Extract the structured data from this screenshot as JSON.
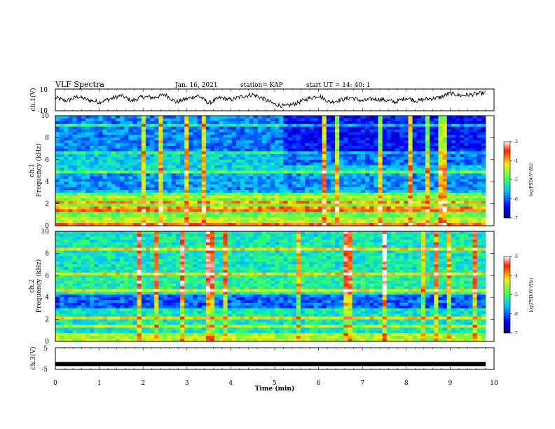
{
  "header": {
    "title": "VLF Spectra",
    "date": "Jan. 16, 2021",
    "station": "station= KAP",
    "start": "start UT =  14: 40: 1"
  },
  "chart_data": [
    {
      "type": "line",
      "panel": "ch1-waveform",
      "ylabel": "ch.1(V)",
      "ylim": [
        -10,
        10
      ],
      "yticks": [
        -10,
        10
      ],
      "xlim": [
        0,
        10
      ],
      "note_values": "approximate waveform samples every 0.25 min",
      "x": [
        0,
        0.25,
        0.5,
        0.75,
        1,
        1.25,
        1.5,
        1.75,
        2,
        2.25,
        2.5,
        2.75,
        3,
        3.25,
        3.5,
        3.75,
        4,
        4.25,
        4.5,
        4.75,
        5,
        5.25,
        5.5,
        5.75,
        6,
        6.25,
        6.5,
        6.75,
        7,
        7.25,
        7.5,
        7.75,
        8,
        8.25,
        8.5,
        8.75,
        9,
        9.25,
        9.5,
        9.75
      ],
      "y": [
        2,
        -1,
        3,
        0,
        -2,
        1,
        4,
        -1,
        3,
        2,
        5,
        -2,
        1,
        4,
        -3,
        2,
        0,
        3,
        5,
        1,
        -4,
        -6,
        -3,
        1,
        4,
        -2,
        0,
        2,
        -1,
        1,
        0,
        -2,
        2,
        -1,
        1,
        2,
        6,
        4,
        5,
        6
      ]
    },
    {
      "type": "heatmap",
      "panel": "ch1-spectrogram",
      "ylabel": "ch.1 Frequency (kHz)",
      "ylim": [
        0,
        10
      ],
      "yticks": [
        0,
        2,
        4,
        6,
        8,
        10
      ],
      "xlim": [
        0,
        10
      ],
      "colorbar": {
        "label": "log(PSD)(V²/Hz)",
        "range": [
          -7,
          -3
        ],
        "ticks": [
          -3,
          -4,
          -5,
          -6,
          -7
        ]
      }
    },
    {
      "type": "heatmap",
      "panel": "ch2-spectrogram",
      "ylabel": "ch.2 Frequency (kHz)",
      "ylim": [
        0,
        10
      ],
      "yticks": [
        0,
        2,
        4,
        6,
        8,
        10
      ],
      "xlim": [
        0,
        10
      ],
      "colorbar": {
        "label": "log(PSD)(V²/Hz)",
        "range": [
          -7,
          -3
        ],
        "ticks": [
          -3,
          -4,
          -5,
          -6,
          -7
        ]
      }
    },
    {
      "type": "line",
      "panel": "ch3-waveform",
      "ylabel": "ch.3(V)",
      "ylim": [
        -5,
        5
      ],
      "yticks": [
        -5,
        0,
        5
      ],
      "xlim": [
        0,
        10
      ],
      "level": -2.5,
      "xlabel": "Time (min)",
      "xticks": [
        0,
        1,
        2,
        3,
        4,
        5,
        6,
        7,
        8,
        9,
        10
      ]
    }
  ],
  "colors": {
    "blue": "#0033ff",
    "cyan": "#00c8ff",
    "green": "#33ff66",
    "yellow": "#ffee00",
    "red": "#ff2200"
  }
}
